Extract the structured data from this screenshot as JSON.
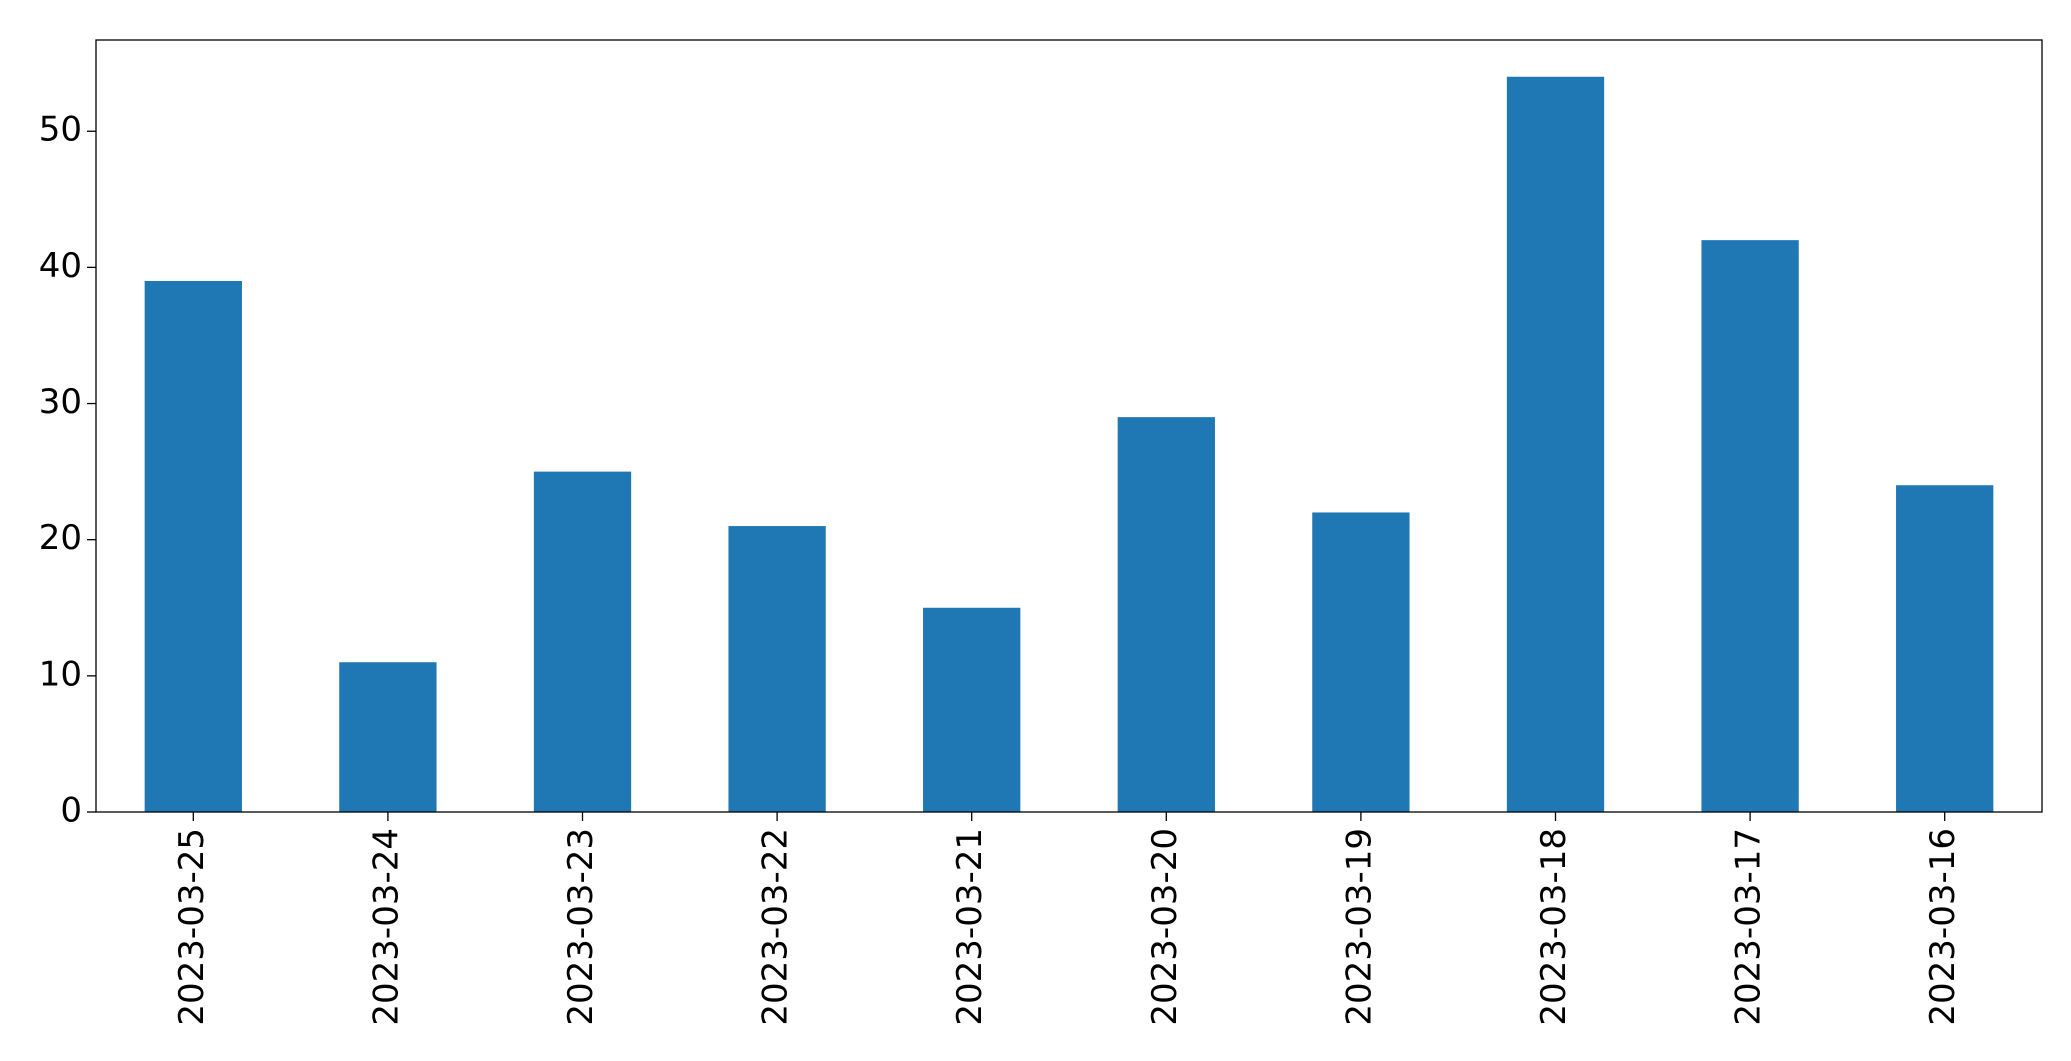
{
  "chart_data": {
    "type": "bar",
    "categories": [
      "2023-03-25",
      "2023-03-24",
      "2023-03-23",
      "2023-03-22",
      "2023-03-21",
      "2023-03-20",
      "2023-03-19",
      "2023-03-18",
      "2023-03-17",
      "2023-03-16"
    ],
    "values": [
      39,
      11,
      25,
      21,
      15,
      29,
      22,
      54,
      42,
      24
    ],
    "color": "#1f77b4",
    "ylim": [
      0,
      56.7
    ],
    "yticks": [
      0,
      10,
      20,
      30,
      40,
      50
    ],
    "grid": false
  }
}
